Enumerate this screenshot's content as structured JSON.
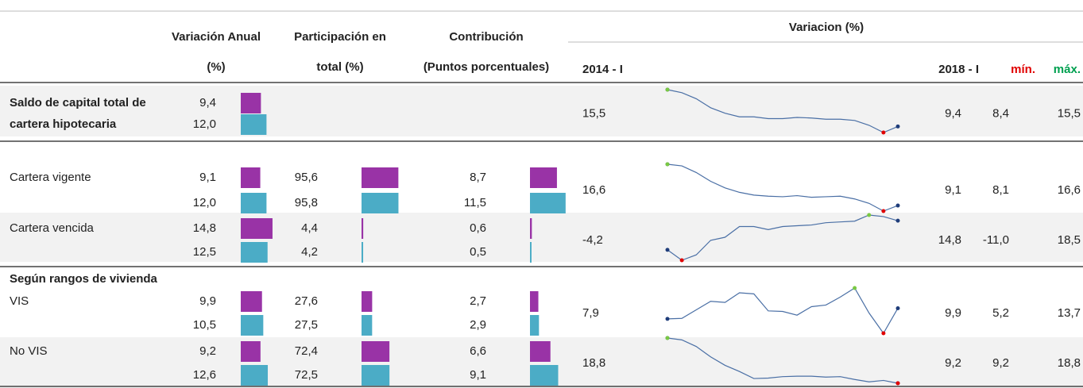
{
  "header": {
    "variacion_anual": [
      "Variación Anual",
      "(%)"
    ],
    "participacion": [
      "Participación en",
      "total (%)"
    ],
    "contribucion": [
      "Contribución",
      "(Puntos porcentuales)"
    ],
    "variacion": "Variacion (%)",
    "start": "2014 - I",
    "end": "2018 - I",
    "min": "mín.",
    "max": "máx."
  },
  "rows": [
    {
      "label": [
        "Saldo de capital total de",
        "cartera hipotecaria"
      ],
      "anual": [
        "9,4",
        "12,0"
      ],
      "participacion": [],
      "contribucion": [],
      "start": "15,5",
      "end": "9,4",
      "min": "8,4",
      "max": "15,5",
      "spark": [
        15.5,
        15.0,
        14.0,
        12.5,
        11.6,
        11.0,
        11.0,
        10.7,
        10.7,
        10.9,
        10.8,
        10.6,
        10.6,
        10.4,
        9.6,
        8.4,
        9.4
      ]
    },
    {
      "label": [
        "Cartera vigente"
      ],
      "anual": [
        "9,1",
        "12,0"
      ],
      "participacion": [
        "95,6",
        "95,8"
      ],
      "contribucion": [
        "8,7",
        "11,5"
      ],
      "start": "16,6",
      "end": "9,1",
      "min": "8,1",
      "max": "16,6",
      "spark": [
        16.6,
        16.3,
        15.1,
        13.5,
        12.3,
        11.5,
        11.0,
        10.8,
        10.7,
        10.9,
        10.6,
        10.7,
        10.8,
        10.3,
        9.5,
        8.1,
        9.1
      ]
    },
    {
      "label": [
        "Cartera vencida"
      ],
      "anual": [
        "14,8",
        "12,5"
      ],
      "participacion": [
        "4,4",
        "4,2"
      ],
      "contribucion": [
        "0,6",
        "0,5"
      ],
      "start": "-4,2",
      "end": "14,8",
      "min": "-11,0",
      "max": "18,5",
      "spark": [
        -4.2,
        -11.0,
        -7.5,
        2.0,
        4.0,
        11.0,
        11.0,
        9.0,
        11.0,
        11.5,
        12.0,
        13.5,
        14.0,
        14.5,
        18.5,
        17.5,
        14.8
      ]
    },
    {
      "label": [
        "Según rangos de vivienda"
      ]
    },
    {
      "label": [
        "VIS"
      ],
      "anual": [
        "9,9",
        "10,5"
      ],
      "participacion": [
        "27,6",
        "27,5"
      ],
      "contribucion": [
        "2,7",
        "2,9"
      ],
      "start": "7,9",
      "end": "9,9",
      "min": "5,2",
      "max": "13,7",
      "spark": [
        7.9,
        8.0,
        9.6,
        11.2,
        11.0,
        12.8,
        12.6,
        9.4,
        9.3,
        8.6,
        10.2,
        10.5,
        12.0,
        13.7,
        9.0,
        5.2,
        9.9
      ]
    },
    {
      "label": [
        "No VIS"
      ],
      "anual": [
        "9,2",
        "12,6"
      ],
      "participacion": [
        "72,4",
        "72,5"
      ],
      "contribucion": [
        "6,6",
        "9,1"
      ],
      "start": "18,8",
      "end": "9,2",
      "min": "9,2",
      "max": "18,8",
      "spark": [
        18.8,
        18.4,
        17.0,
        14.8,
        13.0,
        11.7,
        10.2,
        10.3,
        10.6,
        10.7,
        10.7,
        10.5,
        10.6,
        10.0,
        9.5,
        9.8,
        9.2
      ]
    }
  ]
}
